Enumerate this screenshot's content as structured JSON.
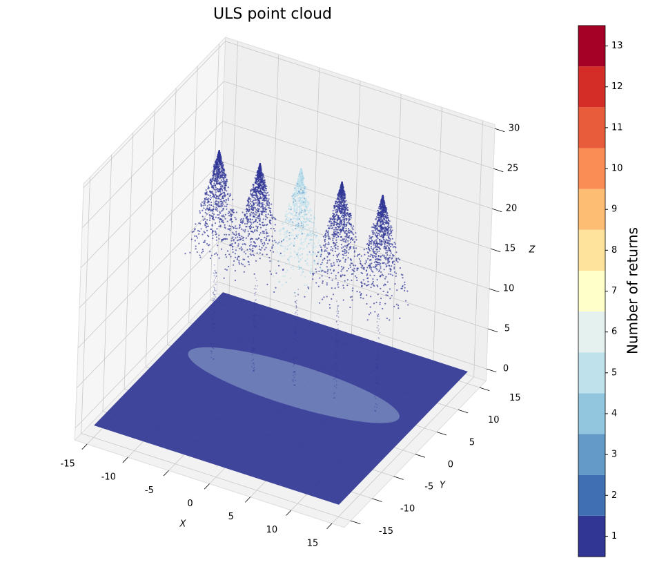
{
  "chart_data": {
    "type": "scatter3d",
    "title": "ULS point cloud",
    "x_label": "X",
    "y_label": "Y",
    "z_label": "Z",
    "xlim": [
      -16.5,
      16.5
    ],
    "ylim": [
      -16.5,
      16.5
    ],
    "zlim": [
      -1.5,
      30.5
    ],
    "xticks": [
      -15,
      -10,
      -5,
      0,
      5,
      10,
      15
    ],
    "yticks": [
      -15,
      -10,
      -5,
      0,
      5,
      10,
      15
    ],
    "zticks": [
      0,
      5,
      10,
      15,
      20,
      25,
      30
    ],
    "ground_extent": [
      -15,
      15
    ],
    "trees": [
      {
        "x": -10,
        "y": 3,
        "height": 26,
        "returns": 1
      },
      {
        "x": -5,
        "y": 3,
        "height": 26,
        "returns": 1
      },
      {
        "x": 0,
        "y": 3,
        "height": 27,
        "returns": 5
      },
      {
        "x": 5,
        "y": 3,
        "height": 27,
        "returns": 1
      },
      {
        "x": 10,
        "y": 3,
        "height": 27,
        "returns": 1
      }
    ],
    "colorbar": {
      "label": "Number of returns",
      "lim": [
        0.5,
        13.5
      ],
      "ticks": [
        1,
        2,
        3,
        4,
        5,
        6,
        7,
        8,
        9,
        10,
        11,
        12,
        13
      ],
      "colors": [
        "#313695",
        "#4070b3",
        "#649ac7",
        "#92c5de",
        "#bfe1ec",
        "#e4f1ef",
        "#ffffc9",
        "#fee39c",
        "#fdbe73",
        "#fa8d55",
        "#e85b3b",
        "#d42d27",
        "#a50026"
      ]
    }
  }
}
